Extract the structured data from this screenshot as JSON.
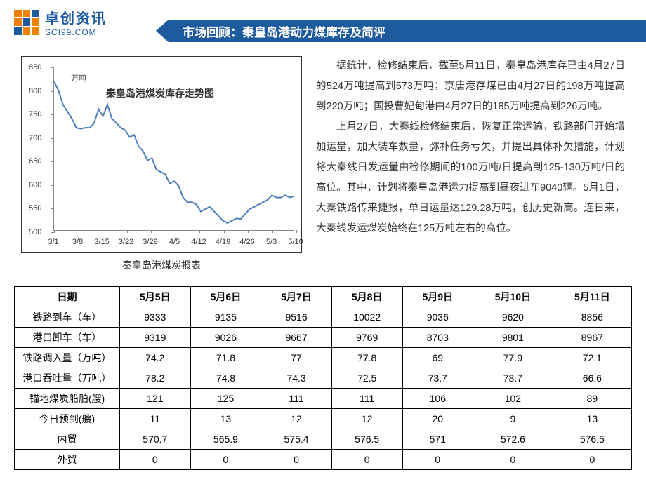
{
  "logo": {
    "cn": "卓创资讯",
    "en": "SCI99.COM"
  },
  "title_bar": "市场回顾：秦皇岛港动力煤库存及简评",
  "chart": {
    "type": "line",
    "title": "秦皇岛港煤炭库存走势图",
    "unit": "万吨",
    "caption": "秦皇岛港煤炭报表",
    "y_axis": {
      "min": 500,
      "max": 850,
      "ticks": [
        500,
        550,
        600,
        650,
        700,
        750,
        800,
        850
      ]
    },
    "x_axis": {
      "labels": [
        "3/1",
        "3/8",
        "3/15",
        "3/22",
        "3/29",
        "4/5",
        "4/12",
        "4/19",
        "4/26",
        "5/3",
        "5/10"
      ]
    },
    "line_color": "#4a7ebb",
    "line_width": 2,
    "border_color": "#333",
    "axis_color": "#888",
    "background": "#ffffff",
    "data": [
      820,
      800,
      770,
      755,
      740,
      720,
      718,
      720,
      720,
      730,
      760,
      745,
      770,
      740,
      730,
      720,
      715,
      700,
      705,
      680,
      670,
      650,
      655,
      630,
      625,
      620,
      600,
      605,
      595,
      570,
      560,
      560,
      555,
      540,
      545,
      550,
      540,
      530,
      520,
      515,
      520,
      525,
      524,
      535,
      545,
      550,
      555,
      560,
      565,
      575,
      570,
      570,
      575,
      570,
      573
    ]
  },
  "paragraphs": [
    "据统计，检修结束后，截至5月11日，秦皇岛港库存已由4月27日的524万吨提高到573万吨；京唐港存煤已由4月27日的198万吨提高到220万吨；国投曹妃甸港由4月27日的185万吨提高到226万吨。",
    "上月27日，大秦线检修结束后，恢复正常运输，铁路部门开始增加运量，加大装车数量，弥补任务亏欠，并提出具体补欠措施，计划将大秦线日发运量由检修期间的100万吨/日提高到125-130万吨/日的高位。其中，计划将秦皇岛港运力提高到昼夜进车9040辆。5月1日，大秦铁路传来捷报，单日运量达129.28万吨，创历史新高。连日来，大秦线发运煤炭始终在125万吨左右的高位。"
  ],
  "table": {
    "columns": [
      "日期",
      "5月5日",
      "5月6日",
      "5月7日",
      "5月8日",
      "5月9日",
      "5月10日",
      "5月11日"
    ],
    "rows": [
      [
        "铁路到车（车）",
        "9333",
        "9135",
        "9516",
        "10022",
        "9036",
        "9620",
        "8856"
      ],
      [
        "港口卸车（车）",
        "9319",
        "9026",
        "9667",
        "9769",
        "8703",
        "9801",
        "8967"
      ],
      [
        "铁路调入量（万吨）",
        "74.2",
        "71.8",
        "77",
        "77.8",
        "69",
        "77.9",
        "72.1"
      ],
      [
        "港口吞吐量（万吨）",
        "78.2",
        "74.8",
        "74.3",
        "72.5",
        "73.7",
        "78.7",
        "66.6"
      ],
      [
        "锚地煤炭船舶(艘)",
        "121",
        "125",
        "111",
        "111",
        "106",
        "102",
        "89"
      ],
      [
        "今日预到(艘)",
        "11",
        "13",
        "12",
        "12",
        "20",
        "9",
        "13"
      ],
      [
        "内贸",
        "570.7",
        "565.9",
        "575.4",
        "576.5",
        "571",
        "572.6",
        "576.5"
      ],
      [
        "外贸",
        "0",
        "0",
        "0",
        "0",
        "0",
        "0",
        "0"
      ]
    ]
  }
}
